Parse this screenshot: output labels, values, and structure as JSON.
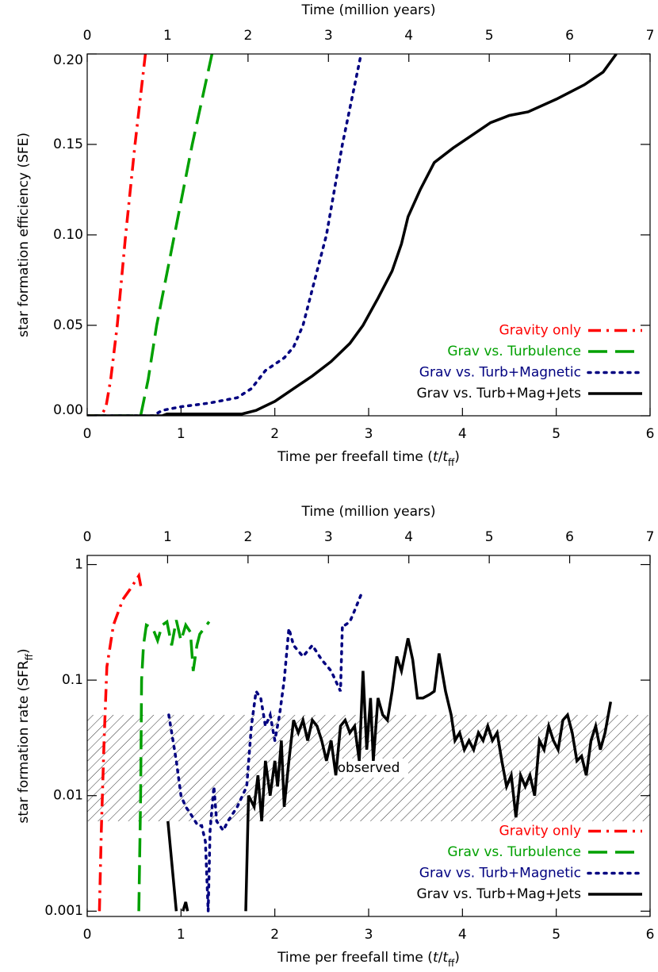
{
  "chart_data": [
    {
      "type": "line",
      "xlabel": [
        "Time per freefall time (",
        "t",
        "/",
        "t",
        "ff",
        ")"
      ],
      "ylabel": [
        "star formation efficiency (SFE)"
      ],
      "x2label": "Time (million years)",
      "xlim": [
        0,
        6
      ],
      "xticks": [
        0,
        1,
        2,
        3,
        4,
        5,
        6
      ],
      "x2lim": [
        0,
        7
      ],
      "x2ticks": [
        0,
        1,
        2,
        3,
        4,
        5,
        6,
        7
      ],
      "ylim": [
        0,
        0.2
      ],
      "ylog": false,
      "yticks": [
        {
          "value": 0,
          "label": "0.00"
        },
        {
          "value": 0.05,
          "label": "0.05"
        },
        {
          "value": 0.1,
          "label": "0.10"
        },
        {
          "value": 0.15,
          "label": "0.15"
        },
        {
          "value": 0.2,
          "label": "0.20"
        }
      ],
      "legend": "lower right",
      "series": [
        {
          "name": "Gravity only",
          "color": "#ff0000",
          "dash": "dashdot",
          "x": [
            0,
            0.1,
            0.15,
            0.2,
            0.25,
            0.32,
            0.41,
            0.51,
            0.62
          ],
          "values": [
            0,
            0,
            0,
            0.005,
            0.02,
            0.05,
            0.1,
            0.15,
            0.2
          ]
        },
        {
          "name": "Grav vs. Turbulence",
          "color": "#00a000",
          "dash": "dashed",
          "x": [
            0,
            0.3,
            0.57,
            0.65,
            0.74,
            0.93,
            1.12,
            1.33
          ],
          "values": [
            0,
            0,
            0,
            0.02,
            0.05,
            0.1,
            0.15,
            0.2
          ]
        },
        {
          "name": "Grav vs. Turb+Magnetic",
          "color": "#000080",
          "dash": "dotted",
          "x": [
            0,
            0.7,
            0.8,
            1.0,
            1.3,
            1.6,
            1.75,
            1.9,
            2.1,
            2.2,
            2.3,
            2.4,
            2.55,
            2.72,
            2.92
          ],
          "values": [
            0,
            0,
            0.003,
            0.005,
            0.007,
            0.01,
            0.015,
            0.025,
            0.032,
            0.038,
            0.05,
            0.07,
            0.1,
            0.15,
            0.2
          ]
        },
        {
          "name": "Grav vs. Turb+Mag+Jets",
          "color": "#000000",
          "dash": "solid",
          "x": [
            0,
            0.8,
            0.85,
            1.65,
            1.8,
            2.0,
            2.2,
            2.4,
            2.6,
            2.8,
            2.94,
            3.1,
            3.25,
            3.35,
            3.42,
            3.55,
            3.7,
            3.9,
            4.1,
            4.3,
            4.5,
            4.7,
            5.0,
            5.3,
            5.5,
            5.64
          ],
          "values": [
            0,
            0,
            0.001,
            0.001,
            0.003,
            0.008,
            0.015,
            0.022,
            0.03,
            0.04,
            0.05,
            0.065,
            0.08,
            0.095,
            0.11,
            0.125,
            0.14,
            0.148,
            0.155,
            0.162,
            0.166,
            0.168,
            0.175,
            0.183,
            0.19,
            0.2
          ]
        }
      ]
    },
    {
      "type": "line",
      "xlabel": [
        "Time per freefall time (",
        "t",
        "/",
        "t",
        "ff",
        ")"
      ],
      "ylabel": [
        "star formation rate (SFR",
        "ff",
        ")"
      ],
      "x2label": "Time (million years)",
      "xlim": [
        0,
        6
      ],
      "xticks": [
        0,
        1,
        2,
        3,
        4,
        5,
        6
      ],
      "x2lim": [
        0,
        7
      ],
      "x2ticks": [
        0,
        1,
        2,
        3,
        4,
        5,
        6,
        7
      ],
      "ylim": [
        0.0009,
        1.2
      ],
      "ylog": true,
      "yticks": [
        0.001,
        0.01,
        0.1,
        1
      ],
      "legend": "lower right",
      "band": {
        "range": [
          0.006,
          0.05
        ],
        "label": "observed"
      },
      "series": [
        {
          "name": "Gravity only",
          "color": "#ff0000",
          "dash": "dashdot",
          "x": [
            0.13,
            0.15,
            0.18,
            0.21,
            0.28,
            0.38,
            0.45,
            0.55,
            0.58
          ],
          "values": [
            0.001,
            0.005,
            0.03,
            0.13,
            0.3,
            0.5,
            0.6,
            0.8,
            0.6
          ]
        },
        {
          "name": "Grav vs. Turbulence",
          "color": "#00a000",
          "dash": "dashed",
          "x": [
            0.55,
            0.57,
            0.58,
            0.6,
            0.63,
            0.7,
            0.75,
            0.8,
            0.85,
            0.9,
            0.95,
            1.0,
            1.05,
            1.1,
            1.13,
            1.17,
            1.2,
            1.3
          ],
          "values": [
            0.001,
            0.01,
            0.1,
            0.2,
            0.3,
            0.28,
            0.22,
            0.3,
            0.32,
            0.2,
            0.33,
            0.22,
            0.3,
            0.26,
            0.12,
            0.2,
            0.25,
            0.32
          ]
        },
        {
          "name": "Grav vs. Turb+Magnetic",
          "color": "#000080",
          "dash": "dotted",
          "x": [
            0.87,
            0.95,
            1.0,
            1.05,
            1.1,
            1.18,
            1.22,
            1.26,
            1.29,
            1.31,
            1.35,
            1.38,
            1.45,
            1.5,
            1.6,
            1.7,
            1.75,
            1.8,
            1.85,
            1.9,
            1.95,
            2.0,
            2.05,
            2.1,
            2.15,
            2.2,
            2.3,
            2.4,
            2.5,
            2.6,
            2.7,
            2.72,
            2.75,
            2.8,
            2.85,
            2.92
          ],
          "values": [
            0.05,
            0.02,
            0.01,
            0.008,
            0.007,
            0.0055,
            0.0055,
            0.004,
            0.001,
            0.005,
            0.012,
            0.006,
            0.005,
            0.006,
            0.008,
            0.012,
            0.04,
            0.08,
            0.07,
            0.04,
            0.05,
            0.03,
            0.05,
            0.1,
            0.28,
            0.2,
            0.16,
            0.2,
            0.15,
            0.12,
            0.08,
            0.3,
            0.3,
            0.32,
            0.4,
            0.55
          ]
        },
        {
          "name": "Grav vs. Turb+Mag+Jets",
          "color": "#000000",
          "dash": "solid",
          "x": [
            0.86,
            0.95,
            1.0,
            1.02,
            1.05,
            1.07,
            1.3,
            1.69,
            1.72,
            1.78,
            1.82,
            1.86,
            1.9,
            1.95,
            2.0,
            2.03,
            2.07,
            2.1,
            2.15,
            2.2,
            2.25,
            2.3,
            2.35,
            2.4,
            2.45,
            2.5,
            2.55,
            2.6,
            2.65,
            2.7,
            2.75,
            2.8,
            2.85,
            2.9,
            2.94,
            2.98,
            3.02,
            3.05,
            3.1,
            3.15,
            3.2,
            3.25,
            3.3,
            3.35,
            3.42,
            3.47,
            3.52,
            3.58,
            3.65,
            3.7,
            3.75,
            3.82,
            3.88,
            3.92,
            3.97,
            4.02,
            4.07,
            4.12,
            4.17,
            4.22,
            4.27,
            4.32,
            4.37,
            4.42,
            4.47,
            4.52,
            4.57,
            4.62,
            4.67,
            4.72,
            4.77,
            4.82,
            4.87,
            4.92,
            4.97,
            5.02,
            5.07,
            5.12,
            5.17,
            5.22,
            5.27,
            5.32,
            5.37,
            5.42,
            5.47,
            5.52,
            5.58
          ],
          "values": [
            0.006,
            0.001,
            null,
            0.001,
            0.0012,
            0.001,
            null,
            0.001,
            0.01,
            0.008,
            0.015,
            0.006,
            0.02,
            0.01,
            0.02,
            0.012,
            0.03,
            0.008,
            0.02,
            0.045,
            0.035,
            0.045,
            0.03,
            0.045,
            0.04,
            0.03,
            0.02,
            0.03,
            0.015,
            0.04,
            0.045,
            0.035,
            0.04,
            0.02,
            0.12,
            0.025,
            0.07,
            0.02,
            0.07,
            0.05,
            0.045,
            0.08,
            0.16,
            0.12,
            0.23,
            0.15,
            0.07,
            0.07,
            0.075,
            0.08,
            0.17,
            0.08,
            0.05,
            0.03,
            0.035,
            0.025,
            0.03,
            0.025,
            0.035,
            0.03,
            0.04,
            0.03,
            0.035,
            0.02,
            0.012,
            0.015,
            0.0065,
            0.015,
            0.012,
            0.015,
            0.01,
            0.03,
            0.025,
            0.04,
            0.03,
            0.025,
            0.045,
            0.05,
            0.035,
            0.02,
            0.022,
            0.015,
            0.03,
            0.04,
            0.025,
            0.035,
            0.065
          ]
        }
      ]
    }
  ]
}
